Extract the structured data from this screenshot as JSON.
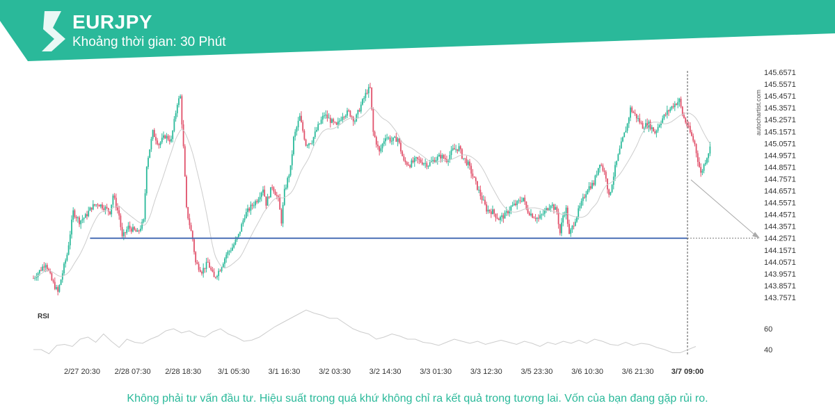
{
  "header": {
    "title": "EURJPY",
    "subtitle": "Khoảng thời gian: 30 Phút",
    "accent_color": "#2ab99a",
    "logo_icon": "autochartist-logo-icon"
  },
  "disclaimer": "Không phải tư vấn đầu tư. Hiệu suất trong quá khứ không chỉ ra kết quả trong tương lai. Vốn của bạn đang gặp rủi ro.",
  "watermark": "autochartist.com",
  "chart_data": {
    "type": "candlestick",
    "symbol": "EURJPY",
    "ylim": [
      143.7571,
      145.6571
    ],
    "y_ticks": [
      "145.6571",
      "145.5571",
      "145.4571",
      "145.3571",
      "145.2571",
      "145.1571",
      "145.0571",
      "144.9571",
      "144.8571",
      "144.7571",
      "144.6571",
      "144.5571",
      "144.4571",
      "144.3571",
      "144.2571",
      "144.1571",
      "144.0571",
      "143.9571",
      "143.8571",
      "143.7571"
    ],
    "x_ticks": [
      "2/27 20:30",
      "2/28 07:30",
      "2/28 18:30",
      "3/1 05:30",
      "3/1 16:30",
      "3/2 03:30",
      "3/2 14:30",
      "3/3 01:30",
      "3/3 12:30",
      "3/5 23:30",
      "3/6 10:30",
      "3/6 21:30",
      "3/7 09:00"
    ],
    "current_time_label": "3/7 09:00",
    "colors": {
      "up": "#2ab99a",
      "down": "#e0506a",
      "level": "#4a6fb5",
      "ma": "#cccccc",
      "rsi": "#cccccc",
      "arrow": "#aaaaaa"
    },
    "key_level": 144.2571,
    "forecast": {
      "from": 144.75,
      "to": 144.2571
    },
    "close_path": [
      [
        0,
        143.92
      ],
      [
        4,
        143.98
      ],
      [
        8,
        144.05
      ],
      [
        12,
        143.9
      ],
      [
        16,
        143.8
      ],
      [
        20,
        144.02
      ],
      [
        22,
        144.12
      ],
      [
        26,
        144.48
      ],
      [
        30,
        144.4
      ],
      [
        34,
        144.44
      ],
      [
        38,
        144.52
      ],
      [
        42,
        144.55
      ],
      [
        46,
        144.52
      ],
      [
        50,
        144.48
      ],
      [
        52,
        144.62
      ],
      [
        56,
        144.45
      ],
      [
        58,
        144.26
      ],
      [
        62,
        144.35
      ],
      [
        66,
        144.32
      ],
      [
        68,
        144.3
      ],
      [
        72,
        144.4
      ],
      [
        74,
        144.88
      ],
      [
        78,
        145.15
      ],
      [
        82,
        145.05
      ],
      [
        86,
        145.12
      ],
      [
        90,
        145.08
      ],
      [
        94,
        145.4
      ],
      [
        96,
        145.45
      ],
      [
        98,
        145.02
      ],
      [
        100,
        144.5
      ],
      [
        104,
        144.25
      ],
      [
        106,
        144.05
      ],
      [
        110,
        143.98
      ],
      [
        114,
        144.05
      ],
      [
        118,
        143.92
      ],
      [
        122,
        144.0
      ],
      [
        126,
        144.12
      ],
      [
        130,
        144.18
      ],
      [
        134,
        144.28
      ],
      [
        138,
        144.45
      ],
      [
        142,
        144.52
      ],
      [
        146,
        144.58
      ],
      [
        150,
        144.68
      ],
      [
        152,
        144.55
      ],
      [
        156,
        144.7
      ],
      [
        160,
        144.58
      ],
      [
        162,
        144.4
      ],
      [
        164,
        144.65
      ],
      [
        168,
        144.85
      ],
      [
        170,
        145.1
      ],
      [
        174,
        145.28
      ],
      [
        178,
        145.05
      ],
      [
        182,
        145.08
      ],
      [
        186,
        145.2
      ],
      [
        190,
        145.3
      ],
      [
        194,
        145.25
      ],
      [
        198,
        145.2
      ],
      [
        202,
        145.3
      ],
      [
        206,
        145.32
      ],
      [
        210,
        145.25
      ],
      [
        214,
        145.38
      ],
      [
        218,
        145.5
      ],
      [
        220,
        145.52
      ],
      [
        222,
        145.15
      ],
      [
        226,
        144.98
      ],
      [
        230,
        145.12
      ],
      [
        234,
        145.08
      ],
      [
        238,
        145.1
      ],
      [
        242,
        144.9
      ],
      [
        246,
        144.88
      ],
      [
        250,
        144.92
      ],
      [
        254,
        144.9
      ],
      [
        258,
        144.88
      ],
      [
        262,
        144.92
      ],
      [
        266,
        144.95
      ],
      [
        270,
        144.92
      ],
      [
        274,
        145.0
      ],
      [
        278,
        145.02
      ],
      [
        280,
        144.95
      ],
      [
        284,
        144.88
      ],
      [
        288,
        144.75
      ],
      [
        292,
        144.62
      ],
      [
        296,
        144.5
      ],
      [
        300,
        144.48
      ],
      [
        304,
        144.42
      ],
      [
        308,
        144.45
      ],
      [
        312,
        144.52
      ],
      [
        316,
        144.55
      ],
      [
        320,
        144.6
      ],
      [
        322,
        144.5
      ],
      [
        326,
        144.45
      ],
      [
        330,
        144.42
      ],
      [
        334,
        144.48
      ],
      [
        338,
        144.55
      ],
      [
        342,
        144.48
      ],
      [
        344,
        144.3
      ],
      [
        346,
        144.45
      ],
      [
        348,
        144.5
      ],
      [
        350,
        144.28
      ],
      [
        354,
        144.42
      ],
      [
        358,
        144.55
      ],
      [
        362,
        144.68
      ],
      [
        366,
        144.72
      ],
      [
        370,
        144.9
      ],
      [
        374,
        144.78
      ],
      [
        376,
        144.6
      ],
      [
        380,
        144.85
      ],
      [
        384,
        145.05
      ],
      [
        388,
        145.22
      ],
      [
        390,
        145.35
      ],
      [
        394,
        145.28
      ],
      [
        398,
        145.2
      ],
      [
        402,
        145.22
      ],
      [
        406,
        145.15
      ],
      [
        410,
        145.25
      ],
      [
        414,
        145.32
      ],
      [
        418,
        145.38
      ],
      [
        422,
        145.42
      ],
      [
        424,
        145.3
      ],
      [
        428,
        145.18
      ],
      [
        432,
        145.05
      ],
      [
        434,
        144.92
      ],
      [
        436,
        144.8
      ],
      [
        440,
        144.95
      ],
      [
        442,
        145.02
      ]
    ],
    "rsi": {
      "label": "RSI",
      "levels": [
        "60",
        "40"
      ],
      "values": [
        40,
        40,
        36,
        44,
        45,
        43,
        50,
        52,
        47,
        55,
        48,
        42,
        50,
        47,
        46,
        50,
        53,
        58,
        60,
        56,
        58,
        54,
        52,
        57,
        60,
        55,
        52,
        48,
        49,
        52,
        57,
        62,
        66,
        70,
        74,
        78,
        75,
        73,
        70,
        70,
        65,
        60,
        57,
        55,
        50,
        52,
        55,
        53,
        50,
        50,
        47,
        46,
        44,
        47,
        50,
        48,
        46,
        48,
        45,
        47,
        49,
        47,
        45,
        48,
        46,
        43,
        47,
        45,
        48,
        46,
        49,
        46,
        50,
        48,
        45,
        44,
        47,
        44,
        46,
        45,
        42,
        40,
        37,
        37,
        40,
        43
      ]
    }
  }
}
